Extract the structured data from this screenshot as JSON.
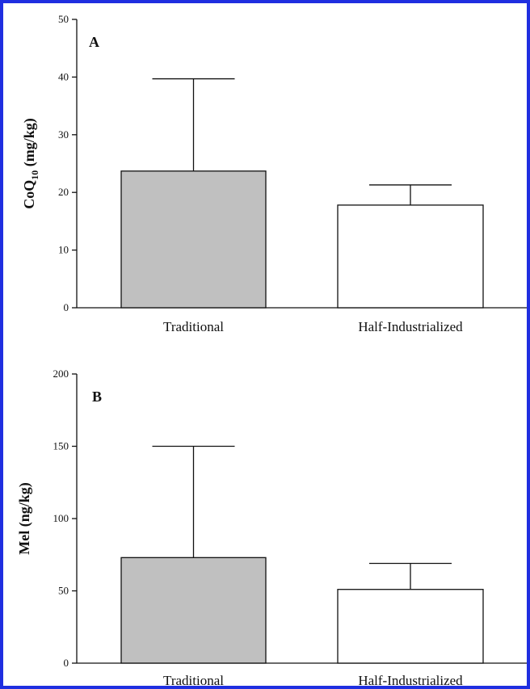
{
  "frame_color": "#1f2fe0",
  "chart_data": [
    {
      "type": "bar",
      "panel_label": "A",
      "ylabel_main": "CoQ",
      "ylabel_sub": "10",
      "ylabel_tail": " (mg/kg)",
      "categories": [
        "Traditional",
        "Half-Industrialized"
      ],
      "values": [
        23.7,
        17.8
      ],
      "errors": [
        16.0,
        3.5
      ],
      "bar_colors": [
        "#c0c0c0",
        "#ffffff"
      ],
      "ylim": [
        0,
        50
      ],
      "yticks": [
        0,
        10,
        20,
        30,
        40,
        50
      ],
      "grid": false
    },
    {
      "type": "bar",
      "panel_label": "B",
      "ylabel_main": "Mel (ng/kg)",
      "ylabel_sub": "",
      "ylabel_tail": "",
      "categories": [
        "Traditional",
        "Half-Industrialized"
      ],
      "values": [
        73,
        51
      ],
      "errors": [
        77,
        18
      ],
      "bar_colors": [
        "#c0c0c0",
        "#ffffff"
      ],
      "ylim": [
        0,
        200
      ],
      "yticks": [
        0,
        50,
        100,
        150,
        200
      ],
      "grid": false
    }
  ]
}
